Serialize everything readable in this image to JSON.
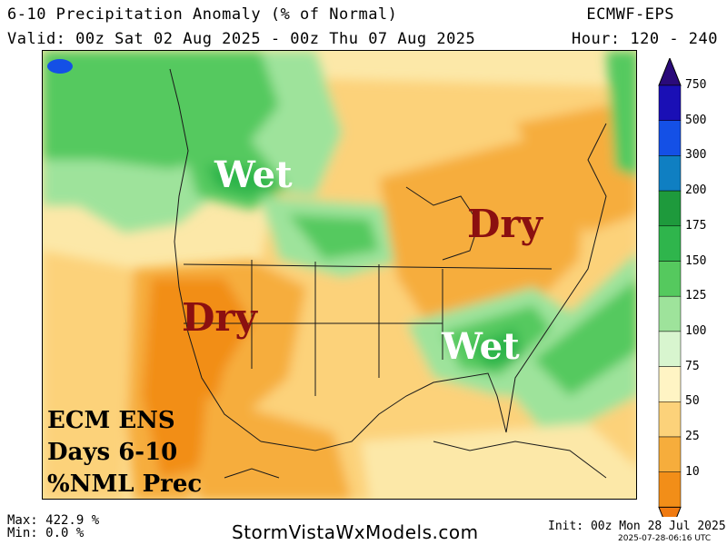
{
  "header": {
    "title": "6-10 Precipitation Anomaly (% of Normal)",
    "valid": "Valid: 00z Sat 02 Aug 2025 - 00z Thu 07 Aug 2025",
    "model": "ECMWF-EPS",
    "hours": "Hour: 120 - 240"
  },
  "annotations": {
    "wet_nw": "Wet",
    "dry_ne": "Dry",
    "dry_sw": "Dry",
    "wet_se": "Wet",
    "ens_lines": [
      "ECM ENS",
      "Days 6-10",
      "%NML Prec"
    ]
  },
  "colorbar": {
    "levels": [
      "750",
      "500",
      "300",
      "200",
      "175",
      "150",
      "125",
      "100",
      "75",
      "50",
      "25",
      "10"
    ],
    "colors": {
      "750": "#1a0fb5",
      "500": "#1450e6",
      "300": "#0f7fc2",
      "200": "#1e9a3c",
      "175": "#2fb54c",
      "150": "#55c95e",
      "125": "#9ee39b",
      "100": "#d8f5cf",
      "75": "#fff4c4",
      "50": "#fcd27a",
      "25": "#f6ad3c",
      "10": "#f28e18"
    }
  },
  "footer": {
    "max": "Max: 422.9 %",
    "min": "Min: 0.0 %",
    "site": "StormVistaWxModels.com",
    "init": "Init: 00z Mon 28 Jul 2025",
    "stamp": "2025-07-28-06:16 UTC"
  }
}
